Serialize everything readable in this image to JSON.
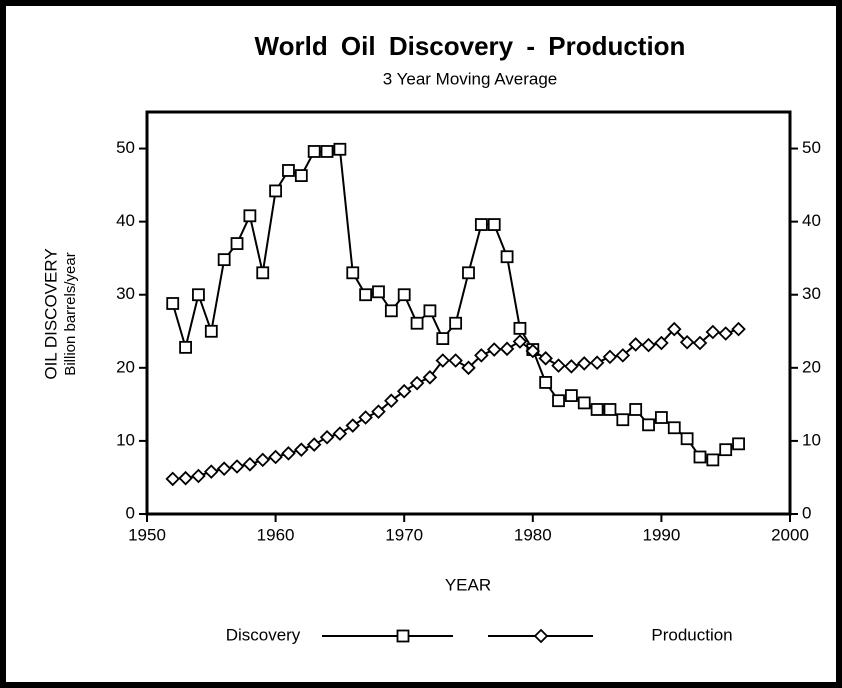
{
  "chart_data": {
    "type": "line",
    "title": "World Oil Discovery - Production",
    "subtitle": "3 Year Moving Average",
    "y_label": "OIL DISCOVERY",
    "y_label_sub": "Billion barrels/year",
    "x_label": "YEAR",
    "x": [
      1952,
      1953,
      1954,
      1955,
      1956,
      1957,
      1958,
      1959,
      1960,
      1961,
      1962,
      1963,
      1964,
      1965,
      1966,
      1967,
      1968,
      1969,
      1970,
      1971,
      1972,
      1973,
      1974,
      1975,
      1976,
      1977,
      1978,
      1979,
      1980,
      1981,
      1982,
      1983,
      1984,
      1985,
      1986,
      1987,
      1988,
      1989,
      1990,
      1991,
      1992,
      1993,
      1994,
      1995,
      1996
    ],
    "series": [
      {
        "name": "Discovery",
        "color": "#000000",
        "marker": "square",
        "values": [
          28.8,
          22.8,
          30.0,
          25.0,
          34.8,
          37.0,
          40.8,
          33.0,
          44.2,
          47.0,
          46.3,
          49.6,
          49.6,
          49.9,
          33.0,
          30.0,
          30.4,
          27.8,
          30.0,
          26.1,
          27.8,
          24.0,
          26.1,
          33.0,
          39.6,
          39.6,
          35.2,
          25.4,
          22.5,
          18.0,
          15.5,
          16.2,
          15.2,
          14.3,
          14.3,
          12.9,
          14.3,
          12.2,
          13.2,
          11.8,
          10.3,
          7.8,
          7.4,
          8.8,
          9.6
        ]
      },
      {
        "name": "Production",
        "color": "#000000",
        "marker": "diamond",
        "values": [
          4.8,
          4.9,
          5.2,
          5.8,
          6.2,
          6.5,
          6.8,
          7.4,
          7.8,
          8.3,
          8.8,
          9.5,
          10.5,
          11.0,
          12.1,
          13.2,
          14.0,
          15.5,
          16.8,
          17.9,
          18.7,
          21.0,
          21.0,
          20.0,
          21.7,
          22.5,
          22.6,
          23.6,
          22.3,
          21.3,
          20.3,
          20.2,
          20.6,
          20.7,
          21.5,
          21.7,
          23.2,
          23.1,
          23.4,
          25.3,
          23.5,
          23.4,
          24.9,
          24.7,
          25.3
        ]
      }
    ],
    "xlim": [
      1950,
      2000
    ],
    "xticks": [
      1950,
      1960,
      1970,
      1980,
      1990,
      2000
    ],
    "ylim": [
      0,
      55
    ],
    "yticks": [
      0,
      10,
      20,
      30,
      40,
      50
    ],
    "y2lim": [
      0,
      55
    ],
    "y2ticks": [
      0,
      10,
      20,
      30,
      40,
      50
    ],
    "grid": false
  }
}
